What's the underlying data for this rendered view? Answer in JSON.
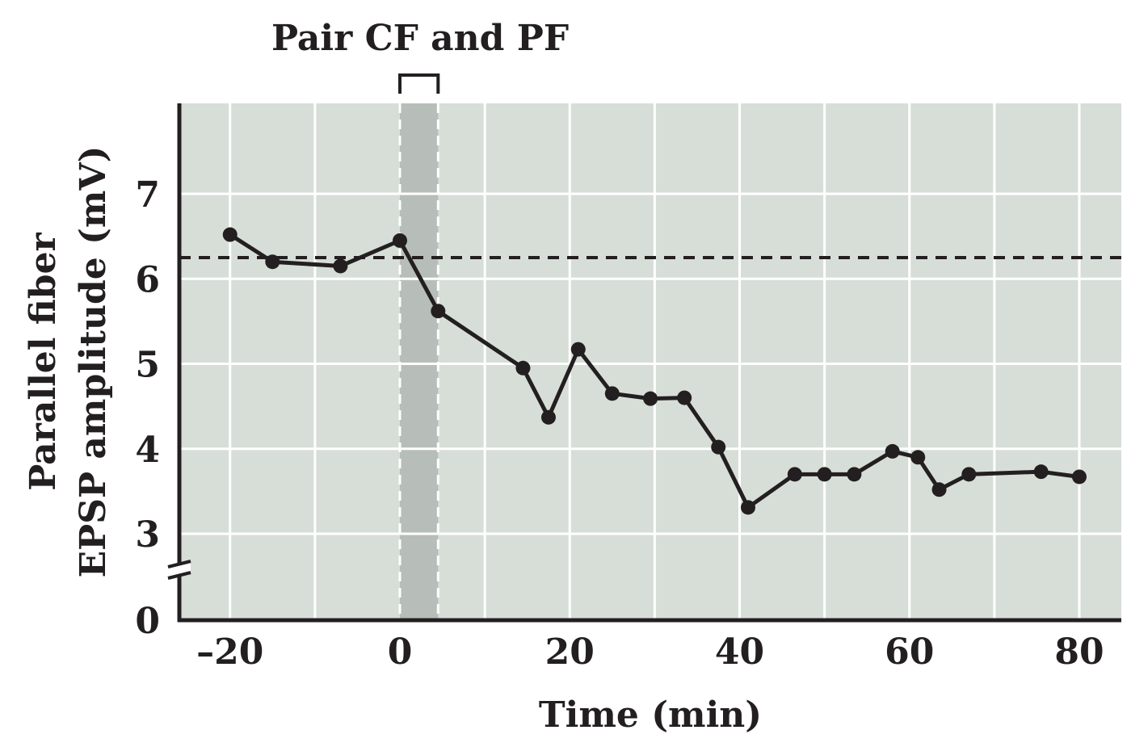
{
  "chart_data": {
    "type": "line",
    "xlabel": "Time (min)",
    "ylabel_line1": "Parallel fiber",
    "ylabel_line2": "EPSP amplitude (mV)",
    "annotation": "Pair CF and PF",
    "xlim": [
      -25,
      86
    ],
    "ylim_plotted": [
      2,
      8.1
    ],
    "x_ticks": [
      -20,
      0,
      20,
      40,
      60,
      80
    ],
    "x_tick_labels": [
      "–20",
      "0",
      "20",
      "40",
      "60",
      "80"
    ],
    "y_ticks": [
      3,
      4,
      5,
      6,
      7
    ],
    "y_tick_labels": [
      "3",
      "4",
      "5",
      "6",
      "7"
    ],
    "y_zero_label": "0",
    "axis_break": true,
    "baseline": 6.25,
    "pairing_window": [
      0,
      4.5
    ],
    "grid": true,
    "colors": {
      "plot_background": "#d7ded7",
      "pairing_band": "#b7beb9",
      "line": "#231f20",
      "grid": "#ffffff"
    },
    "series": [
      {
        "x": [
          -20,
          -15,
          -7,
          0,
          4.5,
          14.5,
          17.5,
          21,
          25,
          29.5,
          33.5,
          37.5,
          41,
          46.5,
          50,
          53.5,
          58,
          61,
          63.5,
          67,
          75.5,
          80
        ],
        "y": [
          6.52,
          6.2,
          6.15,
          6.45,
          5.62,
          4.95,
          4.37,
          5.17,
          4.65,
          4.59,
          4.6,
          4.02,
          3.31,
          3.7,
          3.7,
          3.7,
          3.97,
          3.9,
          3.52,
          3.7,
          3.73,
          3.67
        ]
      }
    ]
  }
}
